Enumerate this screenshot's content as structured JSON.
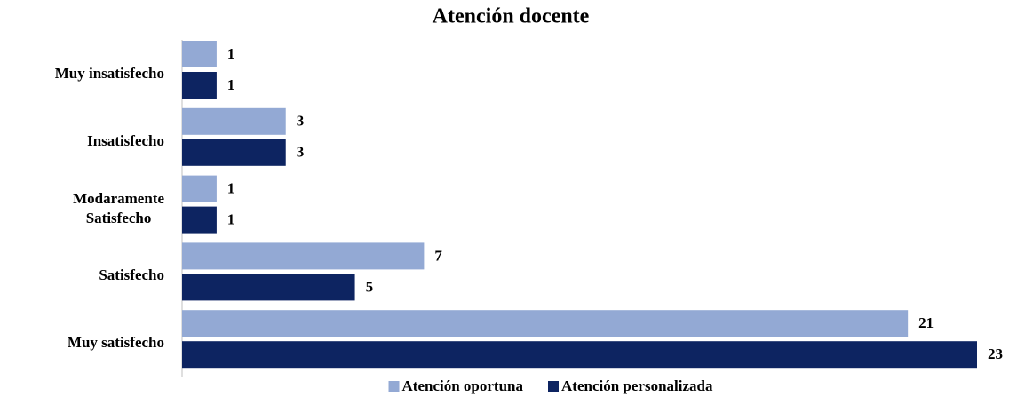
{
  "chart_data": {
    "type": "bar",
    "orientation": "horizontal",
    "title": "Atención docente",
    "categories": [
      "Muy insatisfecho",
      "Insatisfecho",
      "Modaramente\nSatisfecho",
      "Satisfecho",
      "Muy satisfecho"
    ],
    "series": [
      {
        "name": "Atención oportuna",
        "color": "#93a9d4",
        "values": [
          1,
          3,
          1,
          7,
          21
        ]
      },
      {
        "name": "Atención personalizada",
        "color": "#0d2461",
        "values": [
          1,
          3,
          1,
          5,
          23
        ]
      }
    ],
    "legend": "bottom"
  }
}
